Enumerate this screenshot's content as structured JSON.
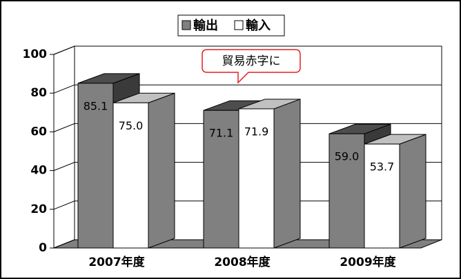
{
  "chart_data": {
    "type": "bar3d",
    "categories": [
      "2007年度",
      "2008年度",
      "2009年度"
    ],
    "series": [
      {
        "name": "輸出",
        "color": "#808080",
        "values": [
          85.1,
          71.1,
          59.0
        ],
        "value_labels": [
          "85.1",
          "71.1",
          "59.0"
        ]
      },
      {
        "name": "輸入",
        "color": "#ffffff",
        "values": [
          75.0,
          71.9,
          53.7
        ],
        "value_labels": [
          "75.0",
          "71.9",
          "53.7"
        ]
      }
    ],
    "ylim": [
      0,
      100
    ],
    "yticks": [
      0,
      20,
      40,
      60,
      80,
      100
    ],
    "grid": true,
    "annotation": "貿易赤字に"
  }
}
